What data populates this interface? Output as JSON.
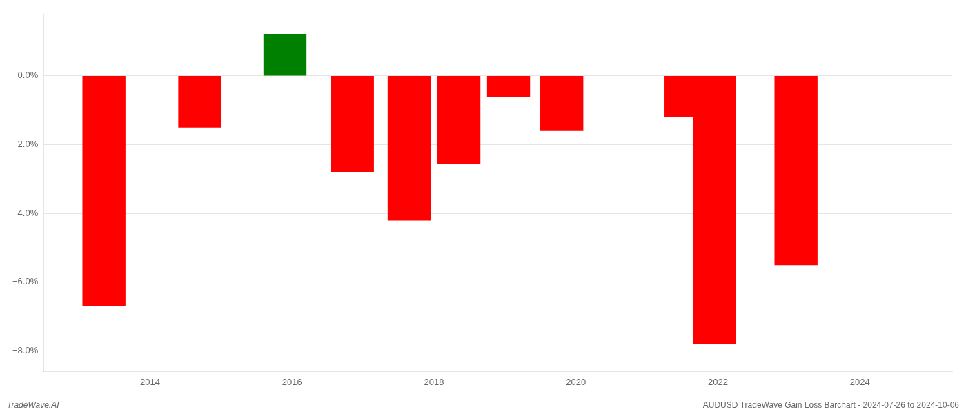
{
  "chart_data": {
    "type": "bar",
    "x": [
      2013.35,
      2014.7,
      2015.9,
      2016.85,
      2017.65,
      2018.35,
      2019.05,
      2019.8,
      2021.55,
      2021.95,
      2023.1
    ],
    "values": [
      -6.7,
      -1.5,
      1.2,
      -2.8,
      -4.2,
      -2.55,
      -0.6,
      -1.6,
      -1.2,
      -7.8,
      -5.5
    ],
    "colors": [
      "#ff0000",
      "#ff0000",
      "#008000",
      "#ff0000",
      "#ff0000",
      "#ff0000",
      "#ff0000",
      "#ff0000",
      "#ff0000",
      "#ff0000",
      "#ff0000"
    ],
    "xlim": [
      2012.5,
      2025.3
    ],
    "xticks": [
      2014,
      2016,
      2018,
      2020,
      2022,
      2024
    ],
    "ylim": [
      -8.6,
      1.8
    ],
    "yticks": [
      {
        "value": 0.0,
        "label": "0.0%"
      },
      {
        "value": -2.0,
        "label": "−2.0%"
      },
      {
        "value": -4.0,
        "label": "−4.0%"
      },
      {
        "value": -6.0,
        "label": "−6.0%"
      },
      {
        "value": -8.0,
        "label": "−8.0%"
      }
    ],
    "grid": "y",
    "annotations": [
      "TradeWave.AI",
      "AUDUSD TradeWave Gain Loss Barchart - 2024-07-26 to 2024-10-06"
    ]
  }
}
